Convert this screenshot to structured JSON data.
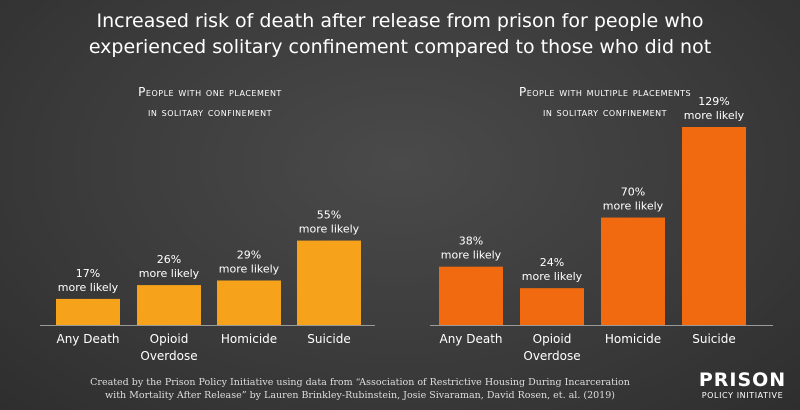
{
  "title": {
    "line1": "Increased risk of death after release from prison for people who",
    "line2": "experienced solitary confinement compared to those who did not"
  },
  "footer": {
    "line1": "Created by the Prison Policy Initiative using data from “Association of Restrictive Housing During Incarceration",
    "line2": "with Mortality After Release” by Lauren Brinkley-Rubinstein, Josie Sivaraman, David Rosen, et. al. (2019)"
  },
  "logo": {
    "line1": "PRISON",
    "line2": "POLICY INITIATIVE"
  },
  "chart_data": [
    {
      "type": "bar",
      "title_lines": [
        "People with one placement",
        "in solitary confinement"
      ],
      "categories": [
        [
          "Any Death"
        ],
        [
          "Opioid",
          "Overdose"
        ],
        [
          "Homicide"
        ],
        [
          "Suicide"
        ]
      ],
      "values": [
        17,
        26,
        29,
        55
      ],
      "value_labels": [
        [
          "17%",
          "more likely"
        ],
        [
          "26%",
          "more likely"
        ],
        [
          "29%",
          "more likely"
        ],
        [
          "55%",
          "more likely"
        ]
      ],
      "color": "#f7a21b"
    },
    {
      "type": "bar",
      "title_lines": [
        "People with multiple placements",
        "in solitary confinement"
      ],
      "categories": [
        [
          "Any Death"
        ],
        [
          "Opioid",
          "Overdose"
        ],
        [
          "Homicide"
        ],
        [
          "Suicide"
        ]
      ],
      "values": [
        38,
        24,
        70,
        129
      ],
      "value_labels": [
        [
          "38%",
          "more likely"
        ],
        [
          "24%",
          "more likely"
        ],
        [
          "70%",
          "more likely"
        ],
        [
          "129%",
          "more likely"
        ]
      ],
      "color": "#f26a0f"
    }
  ]
}
